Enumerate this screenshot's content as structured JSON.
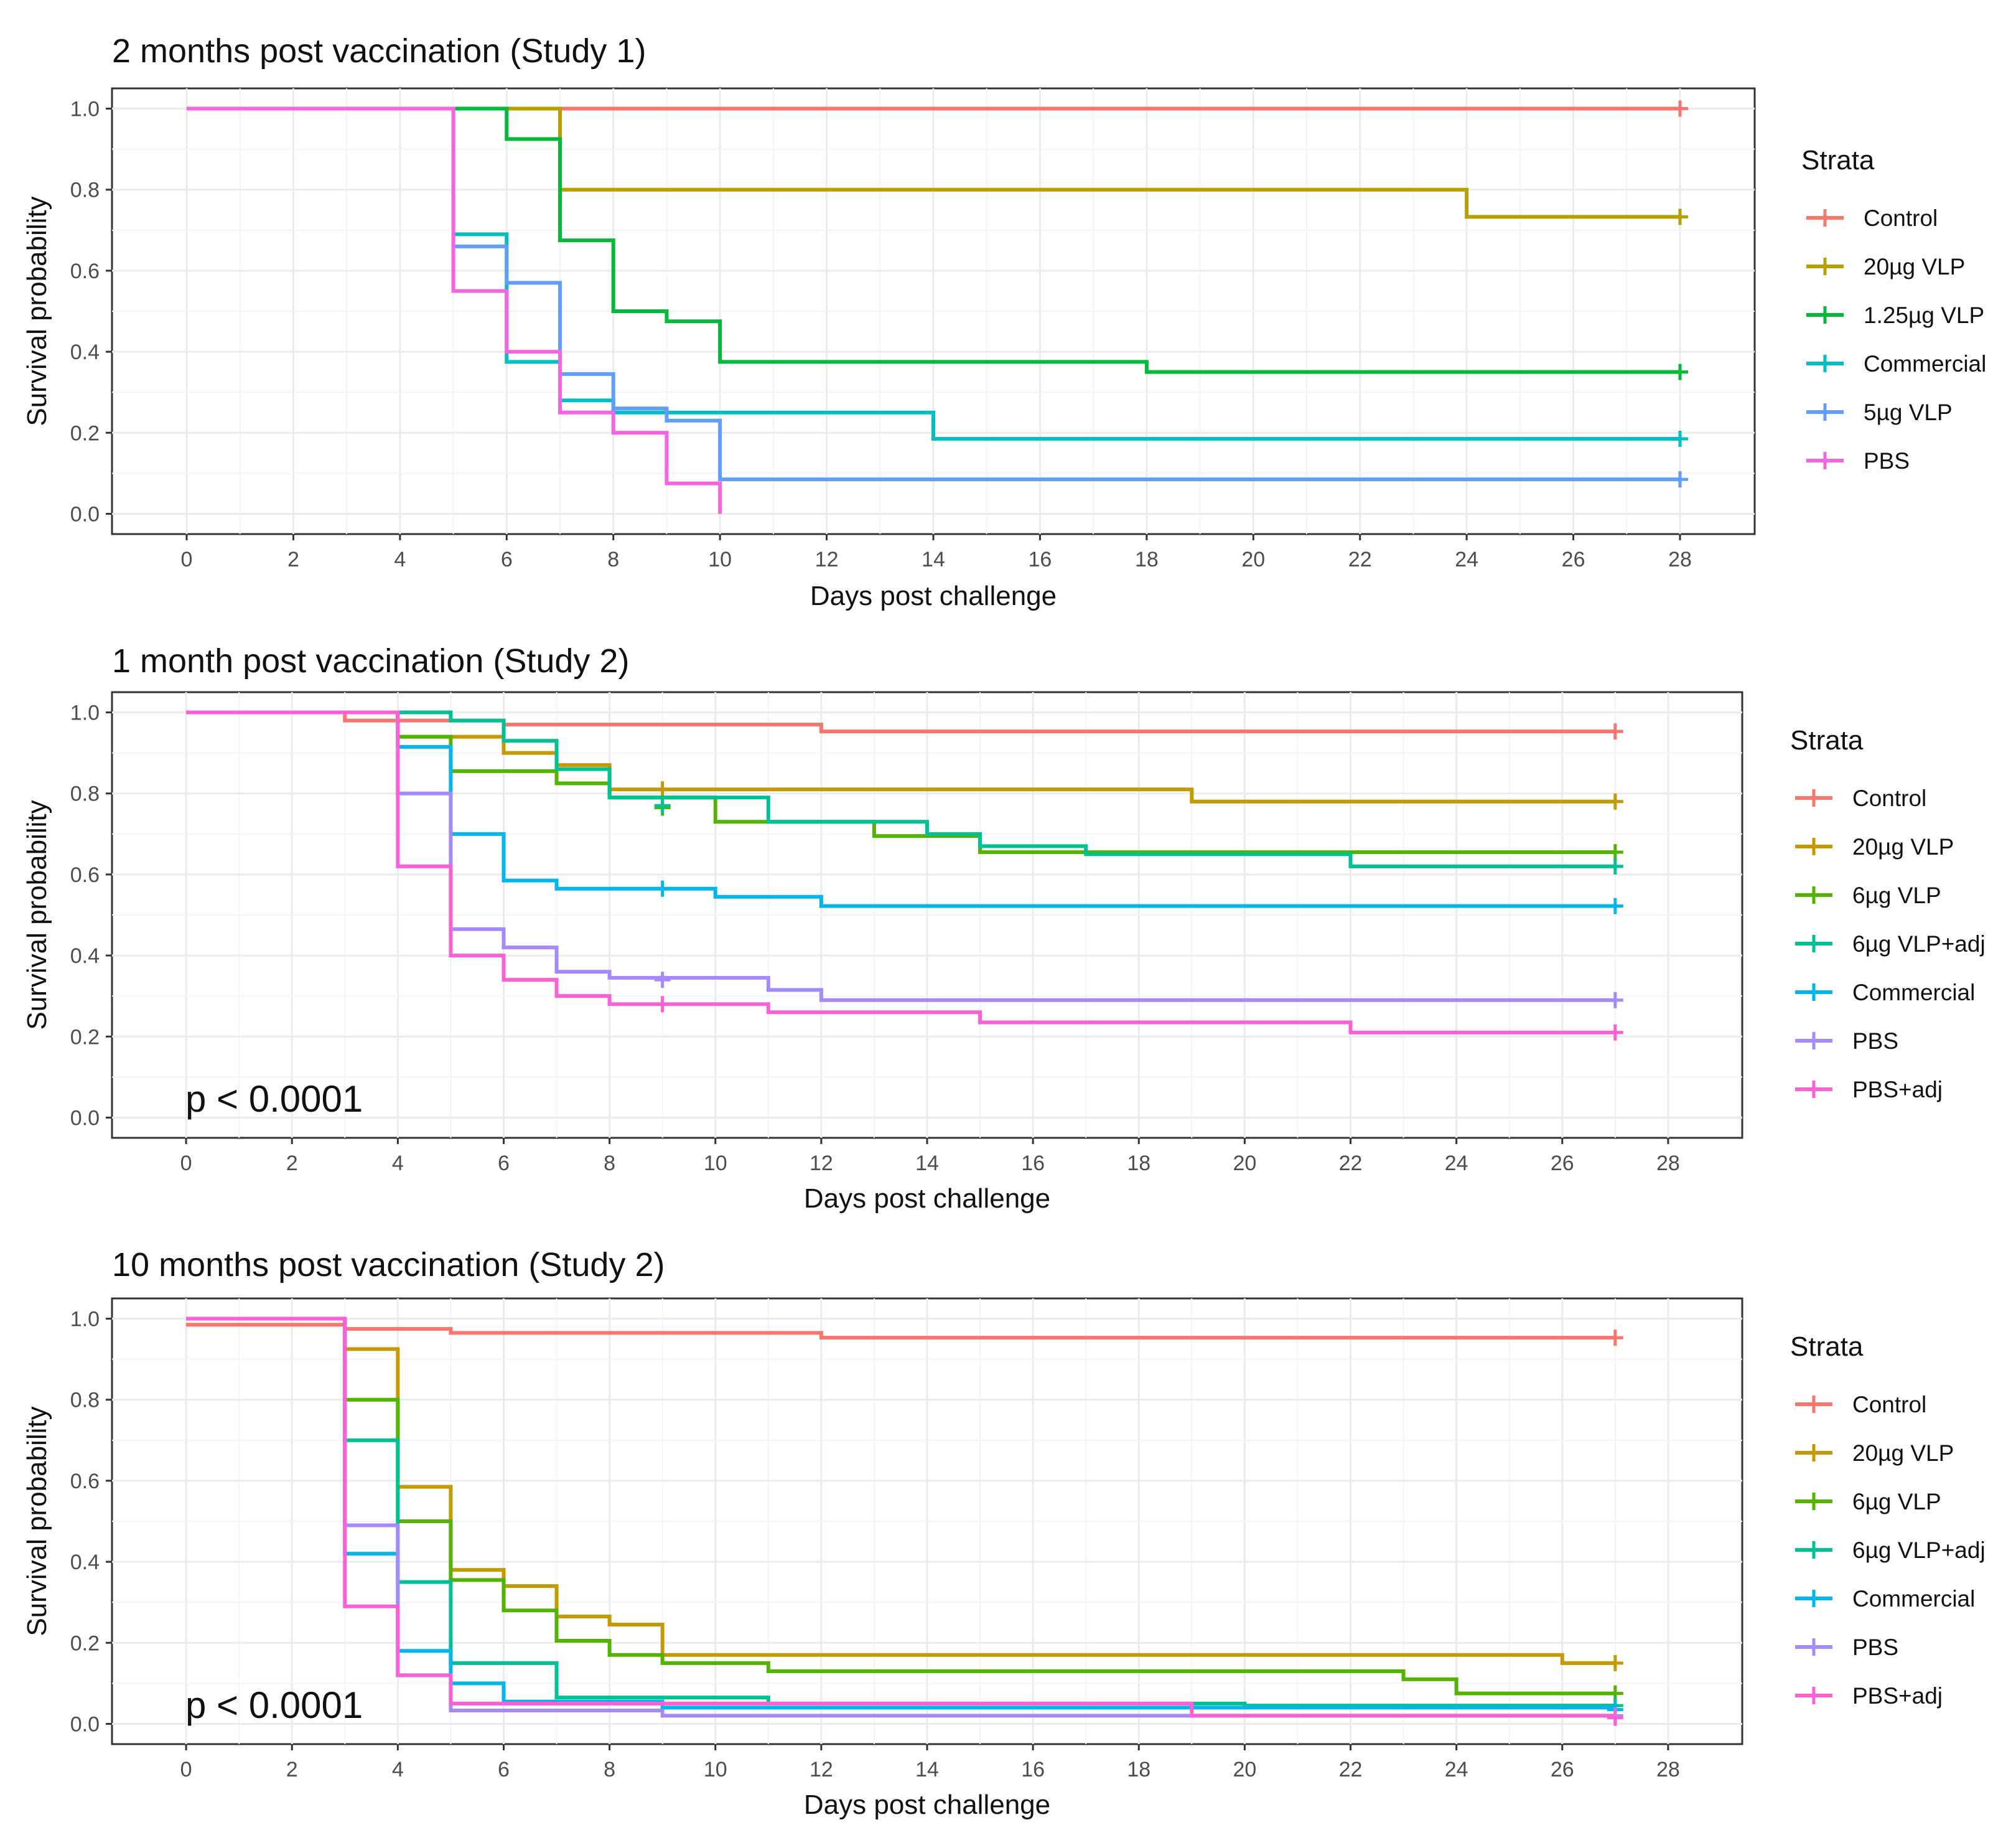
{
  "chart_data": [
    {
      "type": "line",
      "title": "2 months post vaccination (Study 1)",
      "xlabel": "Days post challenge",
      "ylabel": "Survival probability",
      "xlim": [
        -1.4,
        29.4
      ],
      "ylim": [
        -0.05,
        1.05
      ],
      "x_ticks": [
        "0",
        "2",
        "4",
        "6",
        "8",
        "10",
        "12",
        "14",
        "16",
        "18",
        "20",
        "22",
        "24",
        "26",
        "28"
      ],
      "y_ticks": [
        "0.0",
        "0.2",
        "0.4",
        "0.6",
        "0.8",
        "1.0"
      ],
      "legend_title": "Strata",
      "p_value": "",
      "series": [
        {
          "name": "Control",
          "color": "#F8766D",
          "steps": [
            [
              0,
              1.0
            ]
          ],
          "end": 28,
          "censor": [
            [
              28,
              1.0
            ]
          ]
        },
        {
          "name": "20µg VLP",
          "color": "#B79F00",
          "steps": [
            [
              0,
              1.0
            ],
            [
              7,
              0.8
            ],
            [
              24,
              0.733
            ]
          ],
          "end": 28,
          "censor": [
            [
              28,
              0.733
            ]
          ]
        },
        {
          "name": "1.25µg VLP",
          "color": "#00BA38",
          "steps": [
            [
              0,
              1.0
            ],
            [
              6,
              0.925
            ],
            [
              7,
              0.675
            ],
            [
              8,
              0.5
            ],
            [
              9,
              0.475
            ],
            [
              10,
              0.375
            ],
            [
              18,
              0.35
            ]
          ],
          "end": 28,
          "censor": [
            [
              28,
              0.35
            ]
          ]
        },
        {
          "name": "Commercial",
          "color": "#00BFC4",
          "steps": [
            [
              0,
              1.0
            ],
            [
              5,
              0.69
            ],
            [
              6,
              0.375
            ],
            [
              7,
              0.28
            ],
            [
              8,
              0.25
            ],
            [
              14,
              0.185
            ]
          ],
          "end": 28,
          "censor": [
            [
              28,
              0.185
            ]
          ]
        },
        {
          "name": "5µg VLP",
          "color": "#619CFF",
          "steps": [
            [
              0,
              1.0
            ],
            [
              5,
              0.66
            ],
            [
              6,
              0.57
            ],
            [
              7,
              0.345
            ],
            [
              8,
              0.26
            ],
            [
              9,
              0.23
            ],
            [
              10,
              0.085
            ]
          ],
          "end": 28,
          "censor": [
            [
              28,
              0.085
            ]
          ]
        },
        {
          "name": "PBS",
          "color": "#F564E3",
          "steps": [
            [
              0,
              1.0
            ],
            [
              5,
              0.55
            ],
            [
              6,
              0.4
            ],
            [
              7,
              0.25
            ],
            [
              8,
              0.2
            ],
            [
              9,
              0.075
            ],
            [
              10,
              0.0
            ]
          ],
          "end": 10,
          "censor": []
        }
      ]
    },
    {
      "type": "line",
      "title": "1 month post vaccination (Study 2)",
      "xlabel": "Days post challenge",
      "ylabel": "Survival probability",
      "xlim": [
        -1.4,
        29.4
      ],
      "ylim": [
        -0.05,
        1.05
      ],
      "x_ticks": [
        "0",
        "2",
        "4",
        "6",
        "8",
        "10",
        "12",
        "14",
        "16",
        "18",
        "20",
        "22",
        "24",
        "26",
        "28"
      ],
      "y_ticks": [
        "0.0",
        "0.2",
        "0.4",
        "0.6",
        "0.8",
        "1.0"
      ],
      "legend_title": "Strata",
      "p_value": "p < 0.0001",
      "series": [
        {
          "name": "Control",
          "color": "#F8766D",
          "steps": [
            [
              0,
              1.0
            ],
            [
              3,
              0.98
            ],
            [
              6,
              0.97
            ],
            [
              12,
              0.953
            ]
          ],
          "end": 27,
          "censor": [
            [
              27,
              0.953
            ]
          ]
        },
        {
          "name": "20µg VLP",
          "color": "#C49A00",
          "steps": [
            [
              0,
              1.0
            ],
            [
              4,
              0.94
            ],
            [
              6,
              0.9
            ],
            [
              7,
              0.87
            ],
            [
              8,
              0.81
            ],
            [
              19,
              0.78
            ]
          ],
          "end": 27,
          "censor": [
            [
              9,
              0.81
            ],
            [
              27,
              0.78
            ]
          ]
        },
        {
          "name": "6µg VLP",
          "color": "#53B400",
          "steps": [
            [
              0,
              1.0
            ],
            [
              4,
              0.94
            ],
            [
              5,
              0.855
            ],
            [
              7,
              0.825
            ],
            [
              8,
              0.79
            ],
            [
              10,
              0.73
            ],
            [
              13,
              0.695
            ],
            [
              15,
              0.655
            ]
          ],
          "end": 27,
          "censor": [
            [
              9,
              0.765
            ],
            [
              27,
              0.655
            ]
          ]
        },
        {
          "name": "6µg VLP+adj",
          "color": "#00C094",
          "steps": [
            [
              0,
              1.0
            ],
            [
              5,
              0.98
            ],
            [
              6,
              0.93
            ],
            [
              7,
              0.86
            ],
            [
              8,
              0.79
            ],
            [
              11,
              0.73
            ],
            [
              14,
              0.7
            ],
            [
              15,
              0.67
            ],
            [
              17,
              0.65
            ],
            [
              22,
              0.62
            ]
          ],
          "end": 27,
          "censor": [
            [
              9,
              0.77
            ],
            [
              27,
              0.62
            ]
          ]
        },
        {
          "name": "Commercial",
          "color": "#00B6EB",
          "steps": [
            [
              0,
              1.0
            ],
            [
              4,
              0.915
            ],
            [
              5,
              0.7
            ],
            [
              6,
              0.585
            ],
            [
              7,
              0.565
            ],
            [
              10,
              0.545
            ],
            [
              12,
              0.522
            ]
          ],
          "end": 27,
          "censor": [
            [
              9,
              0.565
            ],
            [
              27,
              0.522
            ]
          ]
        },
        {
          "name": "PBS",
          "color": "#A58AFF",
          "steps": [
            [
              0,
              1.0
            ],
            [
              4,
              0.8
            ],
            [
              5,
              0.465
            ],
            [
              6,
              0.42
            ],
            [
              7,
              0.36
            ],
            [
              8,
              0.345
            ],
            [
              11,
              0.315
            ],
            [
              12,
              0.29
            ]
          ],
          "end": 27,
          "censor": [
            [
              9,
              0.34
            ],
            [
              27,
              0.29
            ]
          ]
        },
        {
          "name": "PBS+adj",
          "color": "#FB61D7",
          "steps": [
            [
              0,
              1.0
            ],
            [
              4,
              0.62
            ],
            [
              5,
              0.4
            ],
            [
              6,
              0.34
            ],
            [
              7,
              0.3
            ],
            [
              8,
              0.28
            ],
            [
              11,
              0.26
            ],
            [
              15,
              0.235
            ],
            [
              22,
              0.21
            ]
          ],
          "end": 27,
          "censor": [
            [
              9,
              0.28
            ],
            [
              27,
              0.21
            ]
          ]
        }
      ]
    },
    {
      "type": "line",
      "title": "10 months post vaccination (Study 2)",
      "xlabel": "Days post challenge",
      "ylabel": "Survival probability",
      "xlim": [
        -1.4,
        29.4
      ],
      "ylim": [
        -0.05,
        1.05
      ],
      "x_ticks": [
        "0",
        "2",
        "4",
        "6",
        "8",
        "10",
        "12",
        "14",
        "16",
        "18",
        "20",
        "22",
        "24",
        "26",
        "28"
      ],
      "y_ticks": [
        "0.0",
        "0.2",
        "0.4",
        "0.6",
        "0.8",
        "1.0"
      ],
      "legend_title": "Strata",
      "p_value": "p < 0.0001",
      "series": [
        {
          "name": "Control",
          "color": "#F8766D",
          "steps": [
            [
              0,
              0.985
            ],
            [
              3,
              0.975
            ],
            [
              5,
              0.965
            ],
            [
              12,
              0.953
            ]
          ],
          "end": 27,
          "censor": [
            [
              27,
              0.953
            ]
          ]
        },
        {
          "name": "20µg VLP",
          "color": "#C49A00",
          "steps": [
            [
              0,
              1.0
            ],
            [
              3,
              0.925
            ],
            [
              4,
              0.585
            ],
            [
              5,
              0.38
            ],
            [
              6,
              0.34
            ],
            [
              7,
              0.265
            ],
            [
              8,
              0.245
            ],
            [
              9,
              0.17
            ],
            [
              26,
              0.15
            ]
          ],
          "end": 27,
          "censor": [
            [
              27,
              0.15
            ]
          ]
        },
        {
          "name": "6µg VLP",
          "color": "#53B400",
          "steps": [
            [
              0,
              1.0
            ],
            [
              3,
              0.8
            ],
            [
              4,
              0.5
            ],
            [
              5,
              0.355
            ],
            [
              6,
              0.28
            ],
            [
              7,
              0.205
            ],
            [
              8,
              0.17
            ],
            [
              9,
              0.15
            ],
            [
              11,
              0.13
            ],
            [
              23,
              0.11
            ],
            [
              24,
              0.075
            ]
          ],
          "end": 27,
          "censor": [
            [
              27,
              0.075
            ]
          ]
        },
        {
          "name": "6µg VLP+adj",
          "color": "#00C094",
          "steps": [
            [
              0,
              1.0
            ],
            [
              3,
              0.7
            ],
            [
              4,
              0.35
            ],
            [
              5,
              0.15
            ],
            [
              7,
              0.065
            ],
            [
              11,
              0.05
            ],
            [
              20,
              0.045
            ]
          ],
          "end": 27,
          "censor": [
            [
              27,
              0.045
            ]
          ]
        },
        {
          "name": "Commercial",
          "color": "#00B6EB",
          "steps": [
            [
              0,
              1.0
            ],
            [
              3,
              0.42
            ],
            [
              4,
              0.18
            ],
            [
              5,
              0.1
            ],
            [
              6,
              0.055
            ],
            [
              9,
              0.04
            ]
          ],
          "end": 27,
          "censor": [
            [
              27,
              0.035
            ]
          ]
        },
        {
          "name": "PBS",
          "color": "#A58AFF",
          "steps": [
            [
              0,
              1.0
            ],
            [
              3,
              0.49
            ],
            [
              4,
              0.12
            ],
            [
              5,
              0.033
            ],
            [
              9,
              0.02
            ]
          ],
          "end": 27,
          "censor": [
            [
              27,
              0.02
            ]
          ]
        },
        {
          "name": "PBS+adj",
          "color": "#FB61D7",
          "steps": [
            [
              0,
              1.0
            ],
            [
              3,
              0.29
            ],
            [
              4,
              0.12
            ],
            [
              5,
              0.05
            ],
            [
              19,
              0.02
            ]
          ],
          "end": 27,
          "censor": [
            [
              27,
              0.015
            ]
          ]
        }
      ]
    }
  ]
}
